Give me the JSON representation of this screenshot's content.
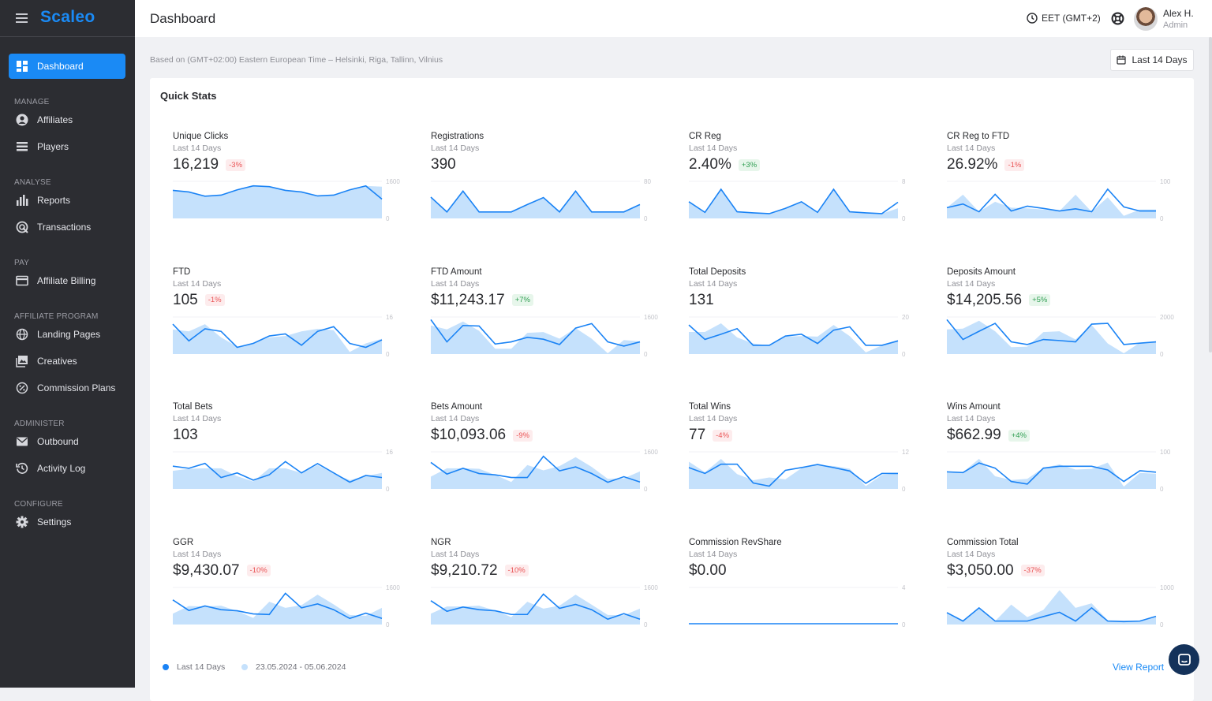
{
  "app": {
    "brand": "Scaleo",
    "page_title": "Dashboard"
  },
  "colors": {
    "accent": "#1a8af5",
    "sidebar_bg": "#2c2d32",
    "line": "#1a83f5",
    "area": "#c5e1fc",
    "negative": "#ea5455",
    "positive": "#2f9e52"
  },
  "header": {
    "timezone": "EET (GMT+2)",
    "user_name": "Alex H.",
    "user_role": "Admin"
  },
  "sidebar": {
    "dashboard": "Dashboard",
    "sections": [
      {
        "label": "MANAGE",
        "items": [
          {
            "label": "Affiliates",
            "icon": "user-circle-icon"
          },
          {
            "label": "Players",
            "icon": "list-icon"
          }
        ]
      },
      {
        "label": "ANALYSE",
        "items": [
          {
            "label": "Reports",
            "icon": "bar-chart-icon"
          },
          {
            "label": "Transactions",
            "icon": "transactions-icon"
          }
        ]
      },
      {
        "label": "PAY",
        "items": [
          {
            "label": "Affiliate Billing",
            "icon": "billing-icon"
          }
        ]
      },
      {
        "label": "AFFILIATE PROGRAM",
        "items": [
          {
            "label": "Landing Pages",
            "icon": "globe-icon"
          },
          {
            "label": "Creatives",
            "icon": "image-icon"
          },
          {
            "label": "Commission Plans",
            "icon": "percent-icon"
          }
        ]
      },
      {
        "label": "ADMINISTER",
        "items": [
          {
            "label": "Outbound",
            "icon": "mail-icon"
          },
          {
            "label": "Activity Log",
            "icon": "history-icon"
          }
        ]
      },
      {
        "label": "CONFIGURE",
        "items": [
          {
            "label": "Settings",
            "icon": "gear-icon"
          }
        ]
      }
    ]
  },
  "main": {
    "based_on": "Based on (GMT+02:00) Eastern European Time – Helsinki, Riga, Tallinn, Vilnius",
    "range_button": "Last 14 Days",
    "quick_stats_title": "Quick Stats",
    "legend": {
      "current": "Last 14 Days",
      "previous": "23.05.2024 - 05.06.2024"
    },
    "view_report": "View Report"
  },
  "chart_data": [
    {
      "type": "area",
      "title": "Unique Clicks",
      "subtitle": "Last 14 Days",
      "value": "16,219",
      "change": "-3%",
      "ylim": [
        0,
        1600
      ],
      "ticks": [
        "1600",
        "0"
      ],
      "current": [
        1211,
        1143,
        960,
        1006,
        1234,
        1406,
        1371,
        1211,
        1143,
        971,
        1006,
        1234,
        1406,
        834
      ],
      "previous": [
        1211,
        1143,
        960,
        1006,
        1234,
        1406,
        1371,
        1211,
        1143,
        971,
        1006,
        1234,
        1406,
        1370
      ]
    },
    {
      "type": "area",
      "title": "Registrations",
      "subtitle": "Last 14 Days",
      "value": "390",
      "change": "",
      "ylim": [
        0,
        80
      ],
      "ticks": [
        "80",
        "0"
      ],
      "current": [
        46,
        14,
        59,
        14,
        14,
        14,
        30,
        45,
        14,
        59,
        14,
        14,
        14,
        30
      ],
      "previous": [
        46,
        14,
        59,
        14,
        14,
        14,
        30,
        45,
        14,
        59,
        14,
        14,
        14,
        30
      ]
    },
    {
      "type": "area",
      "title": "CR Reg",
      "subtitle": "Last 14 Days",
      "value": "2.40%",
      "change": "+3%",
      "ylim": [
        0,
        8
      ],
      "ticks": [
        "8",
        "0"
      ],
      "current": [
        3.6,
        1.31,
        6.29,
        1.43,
        1.2,
        1.03,
        2.17,
        3.6,
        1.31,
        6.29,
        1.43,
        1.2,
        1.03,
        3.49
      ],
      "previous": [
        3.6,
        1.31,
        6.29,
        1.43,
        1.2,
        1.03,
        2.17,
        3.6,
        1.31,
        6.29,
        1.43,
        1.2,
        1.03,
        2.2
      ]
    },
    {
      "type": "area",
      "title": "CR Reg to FTD",
      "subtitle": "Last 14 Days",
      "value": "26.92%",
      "change": "-1%",
      "ylim": [
        0,
        100
      ],
      "ticks": [
        "100",
        "0"
      ],
      "current": [
        29,
        39,
        18,
        65,
        20,
        33,
        27,
        20,
        26,
        18,
        79,
        31,
        20,
        20
      ],
      "previous": [
        29,
        64,
        18,
        45,
        29,
        27,
        24,
        20,
        64,
        18,
        57,
        7,
        24,
        24
      ]
    },
    {
      "type": "area",
      "title": "FTD",
      "subtitle": "Last 14 Days",
      "value": "105",
      "change": "-1%",
      "ylim": [
        0,
        16
      ],
      "ticks": [
        "16",
        "0"
      ],
      "current": [
        12.9,
        5.7,
        10.9,
        9.8,
        2.9,
        4.6,
        7.8,
        8.7,
        3.8,
        9.8,
        11.8,
        4.6,
        2.9,
        6.1
      ],
      "previous": [
        10.6,
        9.8,
        12.9,
        7.2,
        3.2,
        4.9,
        7.2,
        7.8,
        9.8,
        10.9,
        10.3,
        0.9,
        4.6,
        6.6
      ]
    },
    {
      "type": "area",
      "title": "FTD Amount",
      "subtitle": "Last 14 Days",
      "value": "$11,243.17",
      "change": "+7%",
      "ylim": [
        0,
        1600
      ],
      "ticks": [
        "1600",
        "0"
      ],
      "current": [
        1486,
        526,
        1234,
        1211,
        434,
        526,
        720,
        640,
        411,
        1120,
        1314,
        526,
        343,
        526
      ],
      "previous": [
        1234,
        1063,
        1406,
        1006,
        229,
        229,
        914,
        949,
        663,
        1120,
        663,
        34,
        606,
        549
      ]
    },
    {
      "type": "area",
      "title": "Total Deposits",
      "subtitle": "Last 14 Days",
      "value": "131",
      "change": "",
      "ylim": [
        0,
        20
      ],
      "ticks": [
        "20",
        "0"
      ],
      "current": [
        15.7,
        7.9,
        10.7,
        13.7,
        4.7,
        4.7,
        9.7,
        10.7,
        5.7,
        12.9,
        14.7,
        4.7,
        4.7,
        7.1
      ],
      "previous": [
        11.9,
        11.9,
        16.6,
        9,
        5.7,
        4.7,
        9.4,
        9.7,
        9.4,
        15.7,
        9.7,
        0.9,
        4.7,
        7.6
      ]
    },
    {
      "type": "area",
      "title": "Deposits Amount",
      "subtitle": "Last 14 Days",
      "value": "$14,205.56",
      "change": "+5%",
      "ylim": [
        0,
        2000
      ],
      "ticks": [
        "2000",
        "0"
      ],
      "current": [
        1857,
        786,
        1229,
        1657,
        657,
        514,
        786,
        729,
        657,
        1614,
        1657,
        514,
        586,
        657
      ],
      "previous": [
        1329,
        1371,
        1800,
        1229,
        371,
        400,
        1186,
        1229,
        786,
        1571,
        571,
        43,
        614,
        686
      ]
    },
    {
      "type": "area",
      "title": "Total Bets",
      "subtitle": "Last 14 Days",
      "value": "103",
      "change": "",
      "ylim": [
        0,
        16
      ],
      "ticks": [
        "16",
        "0"
      ],
      "current": [
        9.8,
        8.9,
        11,
        4.9,
        6.9,
        3.8,
        6.1,
        11.8,
        6.9,
        10.9,
        6.9,
        2.9,
        5.8,
        4.9
      ],
      "previous": [
        7.8,
        8.7,
        8.9,
        8.9,
        5.5,
        3.2,
        8.9,
        8.9,
        6.9,
        10.3,
        6.6,
        3.8,
        5.5,
        6.9
      ]
    },
    {
      "type": "area",
      "title": "Bets Amount",
      "subtitle": "Last 14 Days",
      "value": "$10,093.06",
      "change": "-9%",
      "ylim": [
        0,
        1600
      ],
      "ticks": [
        "1600",
        "0"
      ],
      "current": [
        1143,
        640,
        891,
        663,
        606,
        491,
        491,
        1406,
        777,
        949,
        663,
        286,
        526,
        297
      ],
      "previous": [
        526,
        891,
        891,
        869,
        606,
        297,
        1029,
        800,
        983,
        1371,
        949,
        434,
        457,
        754
      ]
    },
    {
      "type": "area",
      "title": "Total Wins",
      "subtitle": "Last 14 Days",
      "value": "77",
      "change": "-4%",
      "ylim": [
        0,
        12
      ],
      "ticks": [
        "12",
        "0"
      ],
      "current": [
        6.9,
        5,
        8,
        8,
        1.9,
        0.9,
        6,
        6.9,
        7.9,
        6.9,
        5.8,
        1.8,
        5,
        5
      ],
      "previous": [
        8.8,
        5.4,
        9.7,
        4.8,
        2.8,
        3.7,
        3.1,
        6.7,
        7.7,
        7.4,
        6.5,
        0.9,
        4.5,
        5
      ]
    },
    {
      "type": "area",
      "title": "Wins Amount",
      "subtitle": "Last 14 Days",
      "value": "$662.99",
      "change": "+4%",
      "ylim": [
        0,
        100
      ],
      "ticks": [
        "100",
        "0"
      ],
      "current": [
        46,
        44,
        70,
        56,
        20,
        13,
        56,
        61,
        61,
        61,
        51,
        20,
        49,
        45
      ],
      "previous": [
        45,
        45,
        81,
        34,
        24,
        27,
        57,
        66,
        52,
        54,
        71,
        6,
        43,
        41
      ]
    },
    {
      "type": "area",
      "title": "GGR",
      "subtitle": "Last 14 Days",
      "value": "$9,430.07",
      "change": "-10%",
      "ylim": [
        0,
        1600
      ],
      "ticks": [
        "1600",
        "0"
      ],
      "current": [
        1063,
        606,
        800,
        640,
        594,
        457,
        434,
        1349,
        720,
        891,
        640,
        263,
        491,
        263
      ],
      "previous": [
        469,
        800,
        777,
        811,
        583,
        286,
        983,
        720,
        834,
        1291,
        869,
        411,
        377,
        720
      ]
    },
    {
      "type": "area",
      "title": "NGR",
      "subtitle": "Last 14 Days",
      "value": "$9,210.72",
      "change": "-10%",
      "ylim": [
        0,
        1600
      ],
      "ticks": [
        "1600",
        "0"
      ],
      "current": [
        1029,
        571,
        754,
        640,
        594,
        434,
        434,
        1314,
        697,
        869,
        640,
        229,
        469,
        229
      ],
      "previous": [
        469,
        777,
        777,
        811,
        606,
        320,
        983,
        686,
        811,
        1291,
        857,
        411,
        400,
        686
      ]
    },
    {
      "type": "area",
      "title": "Commission RevShare",
      "subtitle": "Last 14 Days",
      "value": "$0.00",
      "change": "",
      "ylim": [
        0,
        4
      ],
      "ticks": [
        "4",
        "0"
      ],
      "current": [
        0,
        0,
        0,
        0,
        0,
        0,
        0,
        0,
        0,
        0,
        0,
        0,
        0,
        0
      ],
      "previous": [
        0,
        0,
        0,
        0,
        0,
        0,
        0,
        0,
        0,
        0,
        0,
        0,
        0,
        0
      ]
    },
    {
      "type": "area",
      "title": "Commission Total",
      "subtitle": "Last 14 Days",
      "value": "$3,050.00",
      "change": "-37%",
      "ylim": [
        0,
        1000
      ],
      "ticks": [
        "1000",
        "0"
      ],
      "current": [
        321,
        93,
        450,
        93,
        93,
        93,
        214,
        329,
        93,
        450,
        93,
        79,
        93,
        221
      ],
      "previous": [
        321,
        93,
        450,
        93,
        536,
        200,
        393,
        929,
        450,
        571,
        114,
        107,
        107,
        221
      ]
    }
  ]
}
